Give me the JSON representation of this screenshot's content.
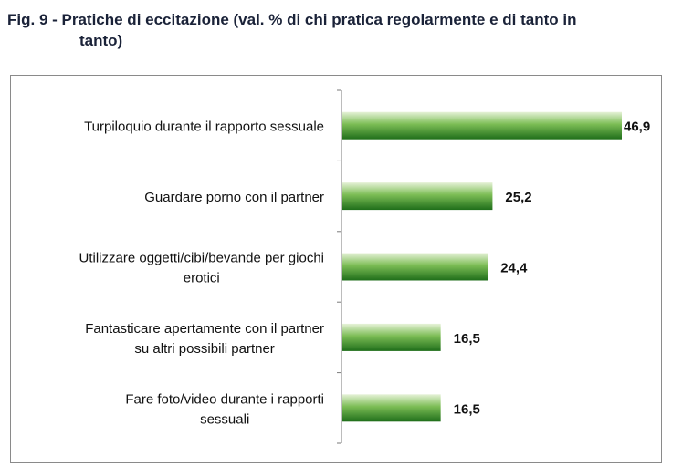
{
  "figure": {
    "title_line1": "Fig. 9 - Pratiche di eccitazione (val. % di chi pratica regolarmente e di tanto in",
    "title_line2": "tanto)"
  },
  "chart_data": {
    "type": "bar",
    "orientation": "horizontal",
    "title": "Fig. 9 - Pratiche di eccitazione (val. % di chi pratica regolarmente e di tanto in tanto)",
    "categories": [
      [
        "Turpiloquio durante il rapporto sessuale"
      ],
      [
        "Guardare porno con il partner"
      ],
      [
        "Utilizzare oggetti/cibi/bevande per giochi",
        "erotici"
      ],
      [
        "Fantasticare apertamente con il partner",
        "su altri possibili partner"
      ],
      [
        "Fare foto/video durante i rapporti",
        "sessuali"
      ]
    ],
    "values": [
      46.9,
      25.2,
      24.4,
      16.5,
      16.5
    ],
    "value_labels": [
      "46,9",
      "25,2",
      "24,4",
      "16,5",
      "16,5"
    ],
    "xlim": [
      0,
      46.9
    ],
    "grid": false,
    "legend": "none",
    "colors": {
      "bar_light": "#e6f2d8",
      "bar_mid": "#7cbd55",
      "bar_dark": "#1f6e1a",
      "axis": "#7a7a7a",
      "text": "#111111"
    }
  }
}
